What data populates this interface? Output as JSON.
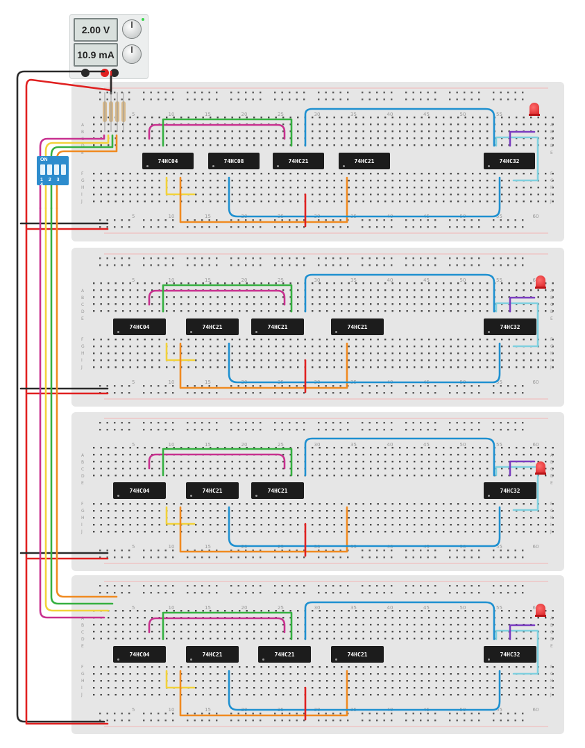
{
  "power_supply": {
    "voltage": "2.00 V",
    "current": "10.9 mA"
  },
  "dip_switch": {
    "label": "ON",
    "numbers": "1 2 3 4"
  },
  "rows": [
    {
      "chips": [
        "74HC04",
        "74HC08",
        "74HC21",
        "74HC21",
        "74HC32"
      ]
    },
    {
      "chips": [
        "74HC04",
        "74HC21",
        "74HC21",
        "74HC21",
        "74HC32"
      ]
    },
    {
      "chips": [
        "74HC04",
        "74HC21",
        "74HC21",
        "74HC32"
      ]
    },
    {
      "chips": [
        "74HC04",
        "74HC21",
        "74HC21",
        "74HC21",
        "74HC32"
      ]
    }
  ],
  "column_numbers": [
    "5",
    "10",
    "15",
    "20",
    "25",
    "30",
    "35",
    "40",
    "45",
    "50",
    "55",
    "60"
  ],
  "row_letters_top": [
    "A",
    "B",
    "C",
    "D",
    "E"
  ],
  "row_letters_bottom": [
    "F",
    "G",
    "H",
    "I",
    "J"
  ],
  "colors": {
    "board": "#e6e6e6",
    "chip": "#1c1c1c",
    "dip_switch": "#2d8ccd",
    "wire_red": "#e02020",
    "wire_black": "#2a2a2a",
    "wire_green": "#35b040",
    "wire_yellow": "#f2d23a",
    "wire_orange": "#f08a20",
    "wire_magenta": "#c8308f",
    "wire_blue": "#1e90d0",
    "wire_light_blue": "#7fd0df",
    "wire_purple": "#7a3cc0",
    "led": "#d2181c"
  }
}
